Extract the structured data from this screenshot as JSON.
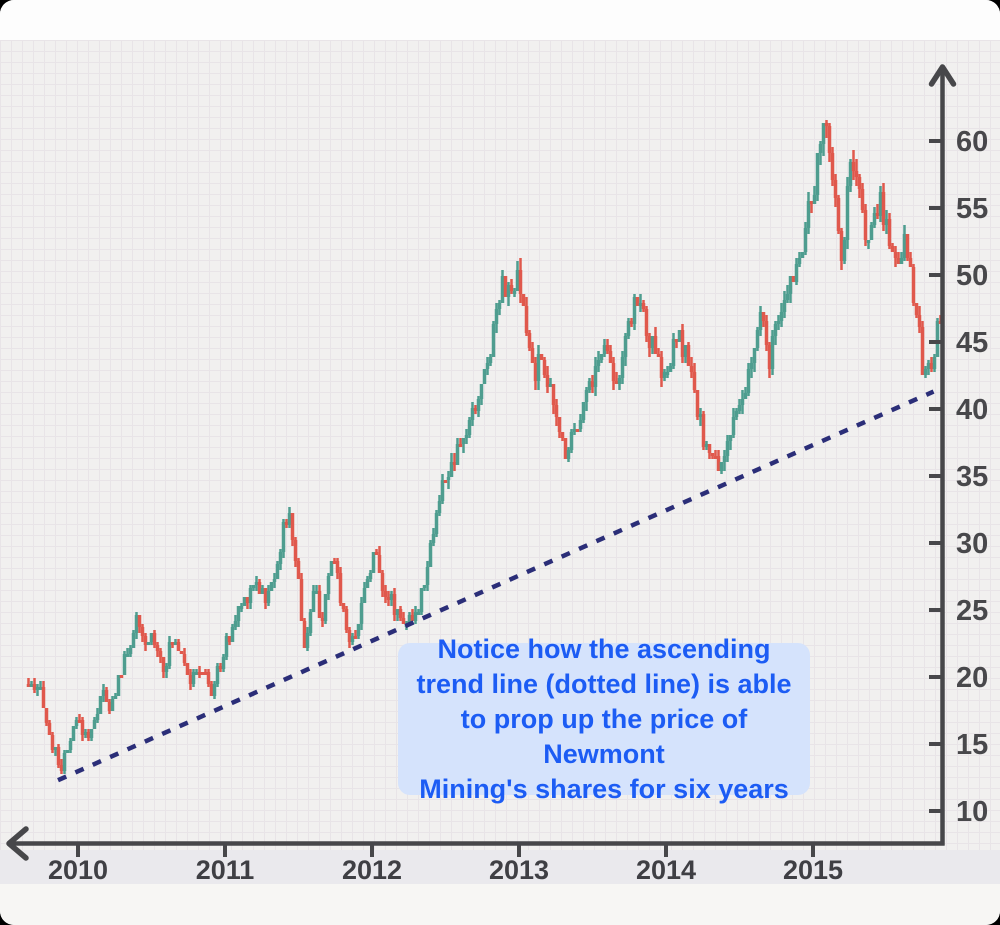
{
  "chart_data": {
    "type": "candlestick",
    "x_axis": {
      "tick_labels": [
        "2010",
        "2011",
        "2012",
        "2013",
        "2014",
        "2015"
      ],
      "range_years": [
        2009.65,
        2015.87
      ]
    },
    "y_axis": {
      "tick_values": [
        10,
        15,
        20,
        25,
        30,
        35,
        40,
        45,
        50,
        55,
        60
      ],
      "min": 10,
      "max": 60,
      "arrow": "up"
    },
    "colors": {
      "up_candle": "#4e9d8f",
      "down_candle": "#e0584c",
      "trend_line": "#2b2e78",
      "axis": "#47474a",
      "grid_line": "#e8e4e7",
      "plot_background": "#f1f0ef"
    },
    "price_anchors": [
      [
        2009.66,
        19.5
      ],
      [
        2009.7,
        18.3
      ],
      [
        2009.74,
        19.3
      ],
      [
        2009.78,
        16.0
      ],
      [
        2009.84,
        14.0
      ],
      [
        2009.88,
        13.3
      ],
      [
        2009.93,
        14.8
      ],
      [
        2009.98,
        16.8
      ],
      [
        2010.04,
        15.6
      ],
      [
        2010.1,
        16.5
      ],
      [
        2010.15,
        19.3
      ],
      [
        2010.2,
        17.2
      ],
      [
        2010.26,
        19.8
      ],
      [
        2010.32,
        21.5
      ],
      [
        2010.38,
        24.3
      ],
      [
        2010.44,
        22.0
      ],
      [
        2010.5,
        23.3
      ],
      [
        2010.57,
        20.8
      ],
      [
        2010.64,
        22.8
      ],
      [
        2010.7,
        22.0
      ],
      [
        2010.76,
        19.6
      ],
      [
        2010.83,
        20.8
      ],
      [
        2010.9,
        18.8
      ],
      [
        2010.97,
        21.5
      ],
      [
        2011.05,
        24.0
      ],
      [
        2011.12,
        25.8
      ],
      [
        2011.2,
        27.3
      ],
      [
        2011.28,
        25.6
      ],
      [
        2011.35,
        29.0
      ],
      [
        2011.42,
        32.3
      ],
      [
        2011.48,
        28.5
      ],
      [
        2011.53,
        22.3
      ],
      [
        2011.6,
        26.3
      ],
      [
        2011.66,
        24.3
      ],
      [
        2011.73,
        29.3
      ],
      [
        2011.79,
        25.3
      ],
      [
        2011.85,
        22.3
      ],
      [
        2011.91,
        24.8
      ],
      [
        2011.97,
        28.0
      ],
      [
        2012.01,
        29.3
      ],
      [
        2012.07,
        26.8
      ],
      [
        2012.14,
        25.3
      ],
      [
        2012.21,
        24.3
      ],
      [
        2012.28,
        23.9
      ],
      [
        2012.35,
        27.5
      ],
      [
        2012.42,
        31.5
      ],
      [
        2012.49,
        35.0
      ],
      [
        2012.55,
        35.8
      ],
      [
        2012.62,
        37.8
      ],
      [
        2012.69,
        39.8
      ],
      [
        2012.76,
        42.5
      ],
      [
        2012.83,
        46.5
      ],
      [
        2012.88,
        50.2
      ],
      [
        2012.93,
        48.2
      ],
      [
        2012.99,
        49.6
      ],
      [
        2013.04,
        46.0
      ],
      [
        2013.1,
        42.6
      ],
      [
        2013.16,
        44.0
      ],
      [
        2013.23,
        39.8
      ],
      [
        2013.31,
        36.9
      ],
      [
        2013.38,
        38.8
      ],
      [
        2013.46,
        41.3
      ],
      [
        2013.53,
        43.4
      ],
      [
        2013.6,
        45.2
      ],
      [
        2013.66,
        41.8
      ],
      [
        2013.73,
        45.0
      ],
      [
        2013.8,
        48.8
      ],
      [
        2013.86,
        46.2
      ],
      [
        2013.93,
        43.6
      ],
      [
        2014.0,
        42.2
      ],
      [
        2014.07,
        45.3
      ],
      [
        2014.14,
        44.0
      ],
      [
        2014.21,
        39.8
      ],
      [
        2014.29,
        36.5
      ],
      [
        2014.36,
        35.6
      ],
      [
        2014.43,
        38.2
      ],
      [
        2014.5,
        39.6
      ],
      [
        2014.57,
        42.8
      ],
      [
        2014.64,
        46.8
      ],
      [
        2014.7,
        43.8
      ],
      [
        2014.77,
        46.3
      ],
      [
        2014.84,
        49.3
      ],
      [
        2014.91,
        51.8
      ],
      [
        2014.97,
        54.3
      ],
      [
        2015.03,
        58.0
      ],
      [
        2015.09,
        61.8
      ],
      [
        2015.14,
        57.5
      ],
      [
        2015.19,
        50.8
      ],
      [
        2015.26,
        58.3
      ],
      [
        2015.32,
        55.3
      ],
      [
        2015.39,
        52.3
      ],
      [
        2015.46,
        55.8
      ],
      [
        2015.52,
        52.8
      ],
      [
        2015.58,
        50.8
      ],
      [
        2015.63,
        53.3
      ],
      [
        2015.69,
        48.5
      ],
      [
        2015.76,
        42.3
      ],
      [
        2015.81,
        43.8
      ],
      [
        2015.86,
        46.3
      ]
    ],
    "trend_line": {
      "style": "dotted",
      "start_t": 2009.864,
      "start_price": 12.3,
      "end_t": 2015.82,
      "end_price": 41.3
    }
  },
  "annotation": {
    "text": "Notice how the ascending\ntrend line (dotted line) is able\nto prop up the price of Newmont\nMining's shares for six years",
    "background": "#d5e3fc",
    "text_color": "#1c5cf4"
  }
}
